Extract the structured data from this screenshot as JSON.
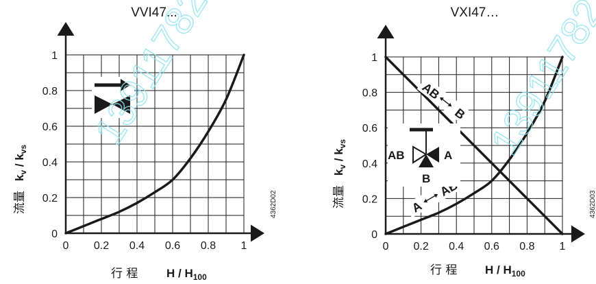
{
  "chart_data": [
    {
      "type": "line",
      "title": "VVI47...",
      "xlabel": {
        "cn": "行   程",
        "main": "H / H",
        "sub": "100"
      },
      "ylabel": {
        "cn": "流量",
        "main": "k",
        "sub1": "v",
        "mid": " / k",
        "sub2": "vs"
      },
      "xlim": [
        0,
        1
      ],
      "ylim": [
        0,
        1
      ],
      "x_ticks": [
        "0",
        "0.2",
        "0.4",
        "0.6",
        "0.8",
        "1"
      ],
      "y_ticks": [
        "0",
        "0.2",
        "0.4",
        "0.6",
        "0.8",
        "1"
      ],
      "grid": true,
      "code": "4362D02",
      "watermark": "13911782",
      "series": [
        {
          "x": [
            0,
            0.1,
            0.2,
            0.3,
            0.4,
            0.5,
            0.6,
            0.7,
            0.8,
            0.9,
            1.0
          ],
          "y": [
            0.0,
            0.04,
            0.08,
            0.12,
            0.17,
            0.23,
            0.3,
            0.42,
            0.57,
            0.75,
            1.0
          ]
        }
      ]
    },
    {
      "type": "line",
      "title": "VXI47…",
      "xlabel": {
        "cn": "行   程",
        "main": "H / H",
        "sub": "100"
      },
      "ylabel": {
        "cn": "流量",
        "main": "k",
        "sub1": "v",
        "mid": " / k",
        "sub2": "vs"
      },
      "xlim": [
        0,
        1
      ],
      "ylim": [
        0,
        1
      ],
      "x_ticks": [
        "0",
        "0.2",
        "0.4",
        "0.6",
        "0.8",
        "1"
      ],
      "y_ticks": [
        "0",
        "0.2",
        "0.4",
        "0.6",
        "0.8",
        "1"
      ],
      "grid": true,
      "code": "4362D03",
      "watermark": "13911782",
      "annotations": {
        "ab_b": [
          "AB",
          "B"
        ],
        "a_ab": [
          "A",
          "AB"
        ],
        "valve": [
          "AB",
          "A",
          "B"
        ]
      },
      "series": [
        {
          "x": [
            0,
            0.1,
            0.2,
            0.3,
            0.4,
            0.5,
            0.6,
            0.7,
            0.8,
            0.9,
            1.0
          ],
          "y": [
            0.0,
            0.04,
            0.08,
            0.12,
            0.17,
            0.23,
            0.3,
            0.42,
            0.57,
            0.75,
            1.0
          ]
        },
        {
          "x": [
            0,
            1.0
          ],
          "y": [
            1.0,
            0.0
          ]
        }
      ]
    }
  ]
}
